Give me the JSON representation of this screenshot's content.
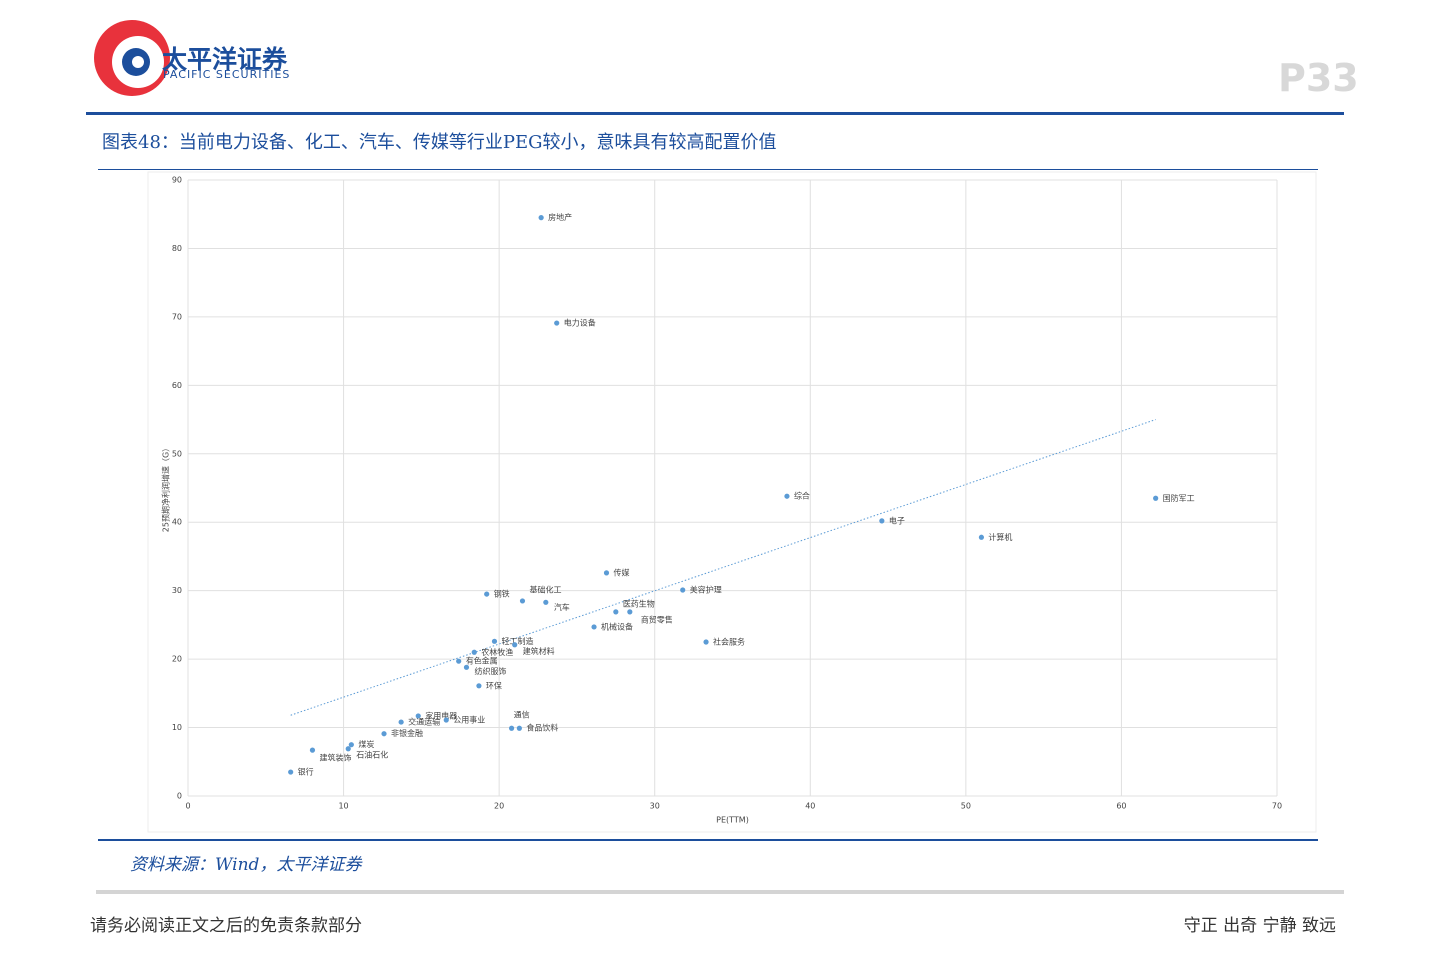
{
  "header": {
    "company": "太平洋证券",
    "company_en": "PACIFIC SECURITIES",
    "page": "P33"
  },
  "figure_title": "图表48：当前电力设备、化工、汽车、传媒等行业PEG较小，意味具有较高配置价值",
  "chart_data": {
    "type": "scatter",
    "xlabel": "PE(TTM)",
    "ylabel": "25预期净利润增速（G）",
    "color": "#5b9bd5",
    "grid": true,
    "xlim": [
      0,
      70
    ],
    "xticks": [
      0,
      10,
      20,
      30,
      40,
      50,
      60,
      70
    ],
    "ylim": [
      0,
      90
    ],
    "yticks": [
      0,
      10,
      20,
      30,
      40,
      50,
      60,
      70,
      80,
      90
    ],
    "labels": [
      "房地产",
      "电力设备",
      "综合",
      "国防军工",
      "电子",
      "计算机",
      "传媒",
      "美容护理",
      "钢铁",
      "基础化工",
      "汽车",
      "医药生物",
      "商贸零售",
      "机械设备",
      "社会服务",
      "轻工制造",
      "建筑材料",
      "农林牧渔",
      "有色金属",
      "纺织服饰",
      "环保",
      "家用电器",
      "交通运输",
      "公用事业",
      "通信",
      "食品饮料",
      "非银金融",
      "煤炭",
      "石油石化",
      "建筑装饰",
      "银行"
    ],
    "x": [
      22.7,
      23.7,
      38.5,
      62.2,
      44.6,
      51.0,
      26.9,
      31.8,
      19.2,
      21.5,
      23.0,
      27.5,
      28.4,
      26.1,
      33.3,
      19.7,
      21.0,
      18.4,
      17.4,
      17.9,
      18.7,
      14.8,
      13.7,
      16.6,
      20.8,
      21.3,
      12.6,
      10.5,
      10.3,
      8.0,
      6.6
    ],
    "y": [
      84.5,
      69.1,
      43.8,
      43.5,
      40.2,
      37.8,
      32.6,
      30.1,
      29.5,
      28.5,
      28.3,
      26.9,
      26.9,
      24.7,
      22.5,
      22.6,
      22.1,
      21.0,
      19.7,
      18.8,
      16.1,
      11.7,
      10.8,
      11.1,
      9.9,
      9.9,
      9.1,
      7.5,
      6.9,
      6.7,
      3.5
    ],
    "trendline": {
      "x": [
        6.6,
        62.2
      ],
      "y": [
        11.8,
        55.0
      ]
    }
  },
  "source": "资料来源：Wind，太平洋证券",
  "footer": {
    "left": "请务必阅读正文之后的免责条款部分",
    "right": "守正 出奇 宁静 致远"
  }
}
